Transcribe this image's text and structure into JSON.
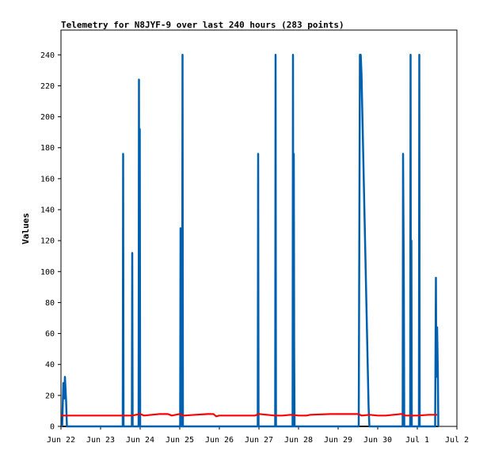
{
  "chart_data": {
    "type": "line",
    "title": "Telemetry for N8JYF-9 over last 240 hours (283 points)",
    "xlabel": "",
    "ylabel": "Values",
    "ylim": [
      0,
      256
    ],
    "yticks": [
      0,
      20,
      40,
      60,
      80,
      100,
      120,
      140,
      160,
      180,
      200,
      220,
      240
    ],
    "x_unit": "days",
    "xlim": [
      0,
      10
    ],
    "xticks": [
      {
        "x": 0,
        "label": "Jun 22"
      },
      {
        "x": 1,
        "label": "Jun 23"
      },
      {
        "x": 2,
        "label": "Jun 24"
      },
      {
        "x": 3,
        "label": "Jun 25"
      },
      {
        "x": 4,
        "label": "Jun 26"
      },
      {
        "x": 5,
        "label": "Jun 27"
      },
      {
        "x": 6,
        "label": "Jun 28"
      },
      {
        "x": 7,
        "label": "Jun 29"
      },
      {
        "x": 8,
        "label": "Jun 30"
      },
      {
        "x": 9,
        "label": "Jul 1"
      },
      {
        "x": 10,
        "label": "Jul 2"
      }
    ],
    "legend": "none",
    "grid": false,
    "series": [
      {
        "color": "#0060b0",
        "style": "spikes",
        "points": [
          [
            0.03,
            0
          ],
          [
            0.06,
            28
          ],
          [
            0.08,
            18
          ],
          [
            0.1,
            32
          ],
          [
            0.13,
            16
          ],
          [
            0.15,
            0
          ],
          [
            1.56,
            0
          ],
          [
            1.57,
            176
          ],
          [
            1.58,
            0
          ],
          [
            1.79,
            0
          ],
          [
            1.8,
            112
          ],
          [
            1.81,
            0
          ],
          [
            1.96,
            0
          ],
          [
            1.97,
            224
          ],
          [
            1.98,
            0
          ],
          [
            1.99,
            192
          ],
          [
            2.0,
            0
          ],
          [
            3.01,
            0
          ],
          [
            3.02,
            128
          ],
          [
            3.03,
            0
          ],
          [
            3.06,
            0
          ],
          [
            3.07,
            240
          ],
          [
            3.08,
            0
          ],
          [
            4.97,
            0
          ],
          [
            4.98,
            176
          ],
          [
            4.99,
            0
          ],
          [
            5.41,
            0
          ],
          [
            5.42,
            240
          ],
          [
            5.43,
            0
          ],
          [
            5.85,
            0
          ],
          [
            5.86,
            240
          ],
          [
            5.87,
            0
          ],
          [
            5.88,
            176
          ],
          [
            5.89,
            48
          ],
          [
            5.9,
            0
          ],
          [
            7.52,
            0
          ],
          [
            7.53,
            80
          ],
          [
            7.55,
            240
          ],
          [
            7.57,
            240
          ],
          [
            7.59,
            228
          ],
          [
            7.61,
            204
          ],
          [
            7.63,
            180
          ],
          [
            7.65,
            156
          ],
          [
            7.67,
            132
          ],
          [
            7.69,
            108
          ],
          [
            7.71,
            84
          ],
          [
            7.73,
            60
          ],
          [
            7.75,
            36
          ],
          [
            7.77,
            12
          ],
          [
            7.79,
            0
          ],
          [
            8.63,
            0
          ],
          [
            8.64,
            176
          ],
          [
            8.66,
            88
          ],
          [
            8.67,
            0
          ],
          [
            8.82,
            0
          ],
          [
            8.83,
            240
          ],
          [
            8.84,
            0
          ],
          [
            8.85,
            120
          ],
          [
            8.86,
            0
          ],
          [
            9.04,
            0
          ],
          [
            9.05,
            240
          ],
          [
            9.06,
            0
          ],
          [
            9.45,
            0
          ],
          [
            9.46,
            48
          ],
          [
            9.47,
            96
          ],
          [
            9.48,
            32
          ],
          [
            9.5,
            64
          ],
          [
            9.52,
            32
          ],
          [
            9.53,
            0
          ]
        ]
      },
      {
        "color": "#ff0000",
        "style": "line",
        "points": [
          [
            0.0,
            7.0
          ],
          [
            0.5,
            7.0
          ],
          [
            1.0,
            7.0
          ],
          [
            1.5,
            7.0
          ],
          [
            1.8,
            7.0
          ],
          [
            1.9,
            7.5
          ],
          [
            2.0,
            8.0
          ],
          [
            2.1,
            7.0
          ],
          [
            2.3,
            7.5
          ],
          [
            2.5,
            8.0
          ],
          [
            2.7,
            8.0
          ],
          [
            2.8,
            7.0
          ],
          [
            2.9,
            7.5
          ],
          [
            3.0,
            8.0
          ],
          [
            3.1,
            7.0
          ],
          [
            3.4,
            7.5
          ],
          [
            3.7,
            8.0
          ],
          [
            3.85,
            8.0
          ],
          [
            3.92,
            6.5
          ],
          [
            4.0,
            7.0
          ],
          [
            4.5,
            7.0
          ],
          [
            4.9,
            7.0
          ],
          [
            5.0,
            8.0
          ],
          [
            5.2,
            7.5
          ],
          [
            5.4,
            7.0
          ],
          [
            5.6,
            7.0
          ],
          [
            5.8,
            7.5
          ],
          [
            6.0,
            7.0
          ],
          [
            6.2,
            7.0
          ],
          [
            6.3,
            7.5
          ],
          [
            6.8,
            8.0
          ],
          [
            7.2,
            8.0
          ],
          [
            7.5,
            8.0
          ],
          [
            7.6,
            7.0
          ],
          [
            7.8,
            7.5
          ],
          [
            8.0,
            7.0
          ],
          [
            8.2,
            7.0
          ],
          [
            8.4,
            7.5
          ],
          [
            8.6,
            8.0
          ],
          [
            8.7,
            7.0
          ],
          [
            9.0,
            7.0
          ],
          [
            9.3,
            7.5
          ],
          [
            9.5,
            7.5
          ]
        ]
      }
    ]
  }
}
